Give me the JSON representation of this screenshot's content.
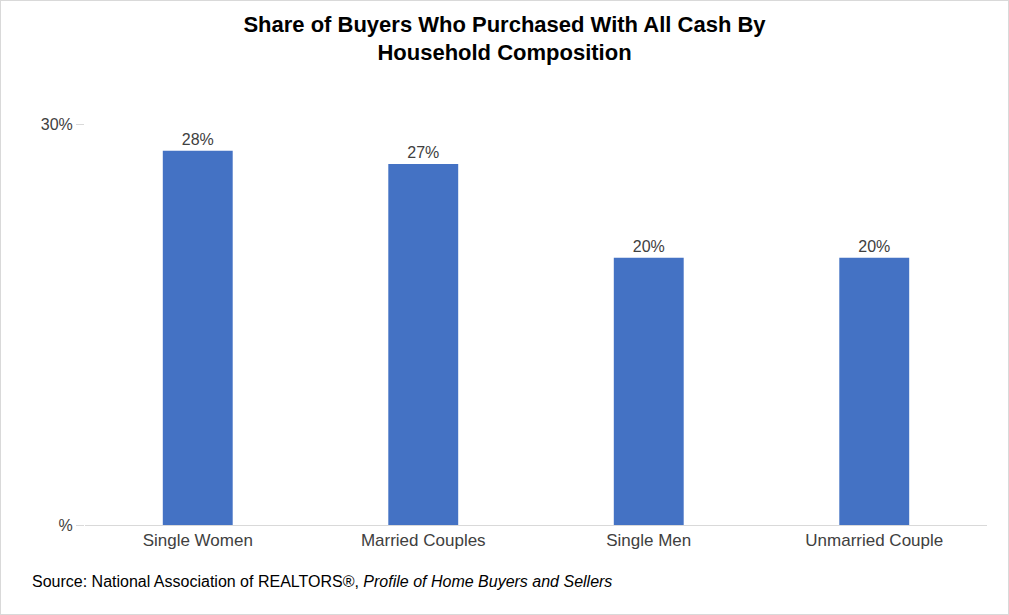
{
  "chart_data": {
    "type": "bar",
    "title": "Share of Buyers Who Purchased With All Cash By\nHousehold Composition",
    "categories": [
      "Single Women",
      "Married Couples",
      "Single Men",
      "Unmarried Couple"
    ],
    "values": [
      28,
      27,
      20,
      20
    ],
    "value_labels": [
      "28%",
      "27%",
      "20%",
      "20%"
    ],
    "data_labels": true,
    "color": "#4472c4",
    "ylim": [
      0,
      30
    ],
    "yticks": [
      {
        "value": 0,
        "label": "%"
      },
      {
        "value": 30,
        "label": "30%"
      }
    ],
    "grid": true,
    "source": [
      "Source: National Association of REALTORS®, ",
      "Profile of Home Buyers and Sellers"
    ]
  }
}
